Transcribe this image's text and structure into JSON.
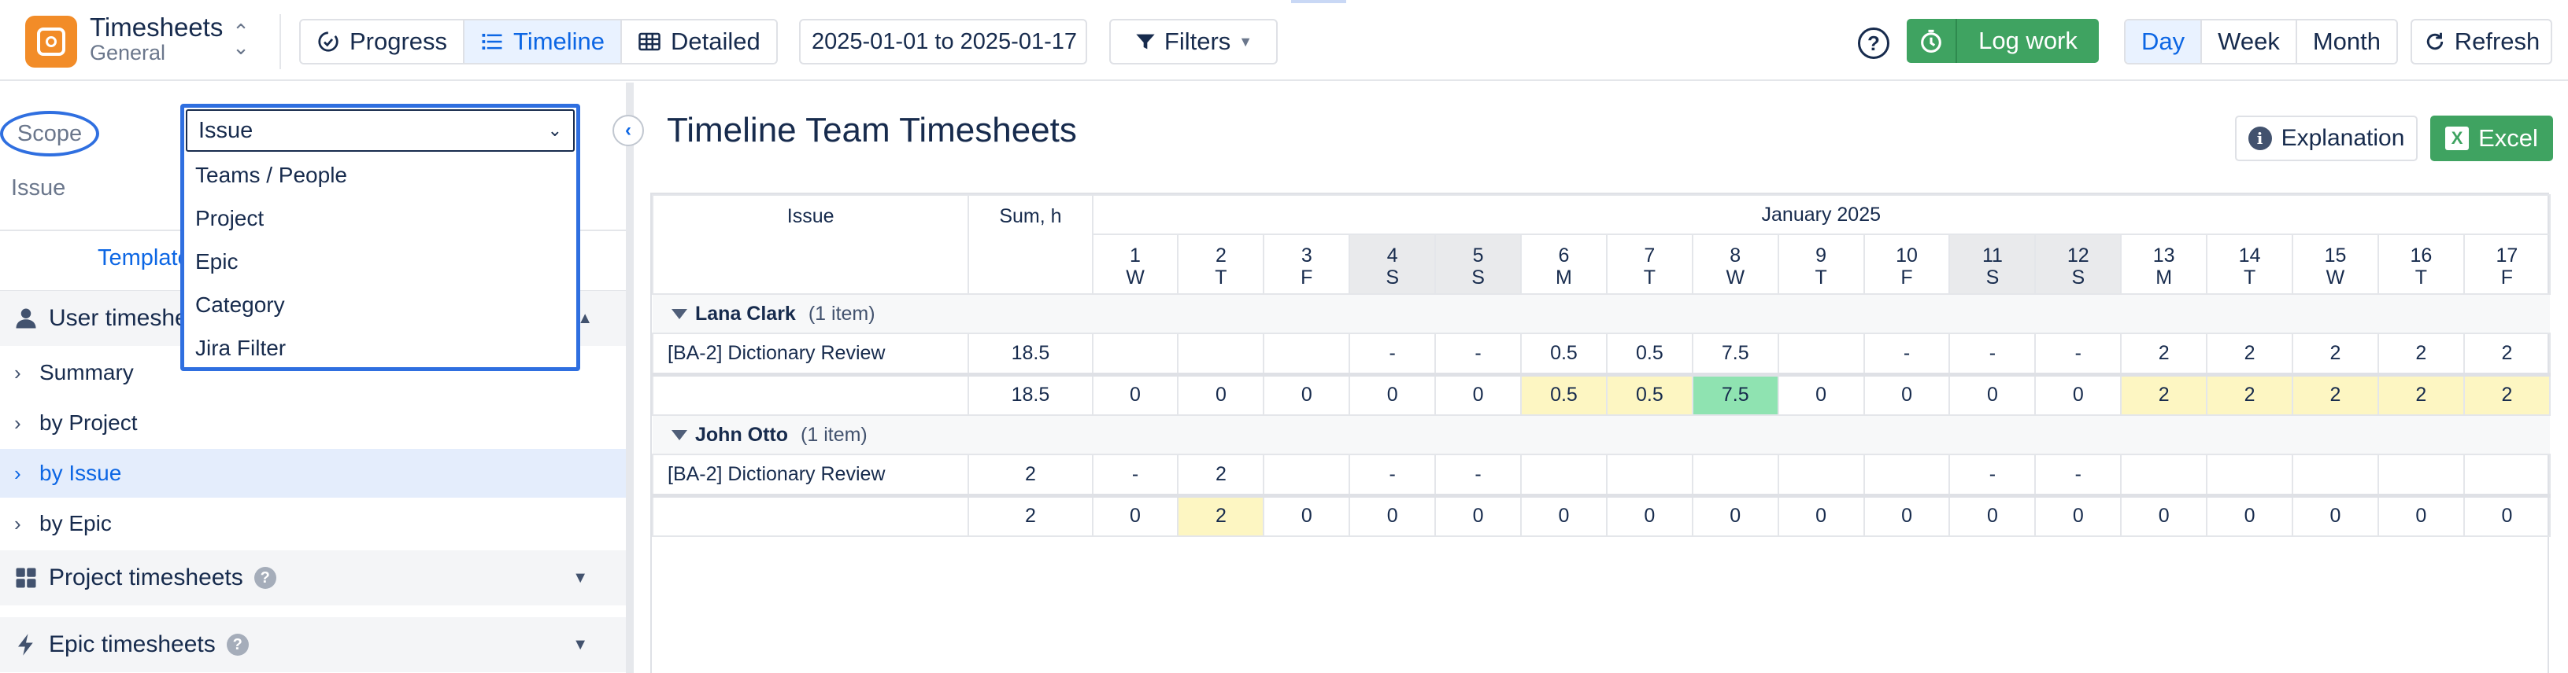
{
  "app": {
    "title": "Timesheets",
    "subtitle": "General"
  },
  "toolbar": {
    "views": [
      {
        "label": "Progress",
        "icon": "gauge-icon",
        "active": false
      },
      {
        "label": "Timeline",
        "icon": "list-icon",
        "active": true
      },
      {
        "label": "Detailed",
        "icon": "grid-icon",
        "active": false
      }
    ],
    "date_range": "2025-01-01 to 2025-01-17",
    "filters_label": "Filters",
    "log_work_label": "Log work",
    "ranges": [
      {
        "label": "Day",
        "active": true
      },
      {
        "label": "Week",
        "active": false
      },
      {
        "label": "Month",
        "active": false
      }
    ],
    "refresh_label": "Refresh"
  },
  "sidebar": {
    "scope_label": "Scope",
    "issue_label": "Issue",
    "tab_label": "Template",
    "scope_select": {
      "selected": "Issue",
      "options": [
        "Teams / People",
        "Project",
        "Epic",
        "Category",
        "Jira Filter"
      ]
    },
    "sections": {
      "user": "User timeshe",
      "project": "Project timesheets",
      "epic": "Epic timesheets"
    },
    "items": [
      {
        "label": "Summary",
        "active": false
      },
      {
        "label": "by Project",
        "active": false
      },
      {
        "label": "by Issue",
        "active": true
      },
      {
        "label": "by Epic",
        "active": false
      }
    ]
  },
  "main": {
    "title": "Timeline Team Timesheets",
    "explanation_label": "Explanation",
    "excel_label": "Excel"
  },
  "grid": {
    "col_issue": "Issue",
    "col_sum": "Sum, h",
    "month": "January 2025",
    "days": [
      {
        "d": "1",
        "w": "W",
        "weekend": false
      },
      {
        "d": "2",
        "w": "T",
        "weekend": false
      },
      {
        "d": "3",
        "w": "F",
        "weekend": false
      },
      {
        "d": "4",
        "w": "S",
        "weekend": true
      },
      {
        "d": "5",
        "w": "S",
        "weekend": true
      },
      {
        "d": "6",
        "w": "M",
        "weekend": false
      },
      {
        "d": "7",
        "w": "T",
        "weekend": false
      },
      {
        "d": "8",
        "w": "W",
        "weekend": false
      },
      {
        "d": "9",
        "w": "T",
        "weekend": false
      },
      {
        "d": "10",
        "w": "F",
        "weekend": false
      },
      {
        "d": "11",
        "w": "S",
        "weekend": true
      },
      {
        "d": "12",
        "w": "S",
        "weekend": true
      },
      {
        "d": "13",
        "w": "M",
        "weekend": false
      },
      {
        "d": "14",
        "w": "T",
        "weekend": false
      },
      {
        "d": "15",
        "w": "W",
        "weekend": false
      },
      {
        "d": "16",
        "w": "T",
        "weekend": false
      },
      {
        "d": "17",
        "w": "F",
        "weekend": false
      }
    ],
    "groups": [
      {
        "name": "Lana Clark",
        "count": "(1 item)",
        "rows": [
          {
            "issue": "[BA-2] Dictionary Review",
            "sum": "18.5",
            "cells": [
              "",
              "",
              "",
              "-",
              "-",
              "0.5",
              "0.5",
              "7.5",
              "",
              "-",
              "-",
              "-",
              "2",
              "2",
              "2",
              "2",
              "2"
            ]
          }
        ],
        "total": {
          "sum": "18.5",
          "cells": [
            "0",
            "0",
            "0",
            "0",
            "0",
            "0.5",
            "0.5",
            "7.5",
            "0",
            "0",
            "0",
            "0",
            "2",
            "2",
            "2",
            "2",
            "2"
          ],
          "highlight": [
            "",
            "",
            "",
            "",
            "",
            "yellow",
            "yellow",
            "green",
            "",
            "",
            "",
            "",
            "yellow",
            "yellow",
            "yellow",
            "yellow",
            "yellow"
          ]
        }
      },
      {
        "name": "John Otto",
        "count": "(1 item)",
        "rows": [
          {
            "issue": "[BA-2] Dictionary Review",
            "sum": "2",
            "cells": [
              "-",
              "2",
              "",
              "-",
              "-",
              "",
              "",
              "",
              "",
              "",
              "-",
              "-",
              "",
              "",
              "",
              "",
              ""
            ]
          }
        ],
        "total": {
          "sum": "2",
          "cells": [
            "0",
            "2",
            "0",
            "0",
            "0",
            "0",
            "0",
            "0",
            "0",
            "0",
            "0",
            "0",
            "0",
            "0",
            "0",
            "0",
            "0"
          ],
          "highlight": [
            "",
            "yellow",
            "",
            "",
            "",
            "",
            "",
            "",
            "",
            "",
            "",
            "",
            "",
            "",
            "",
            "",
            ""
          ]
        }
      }
    ]
  }
}
